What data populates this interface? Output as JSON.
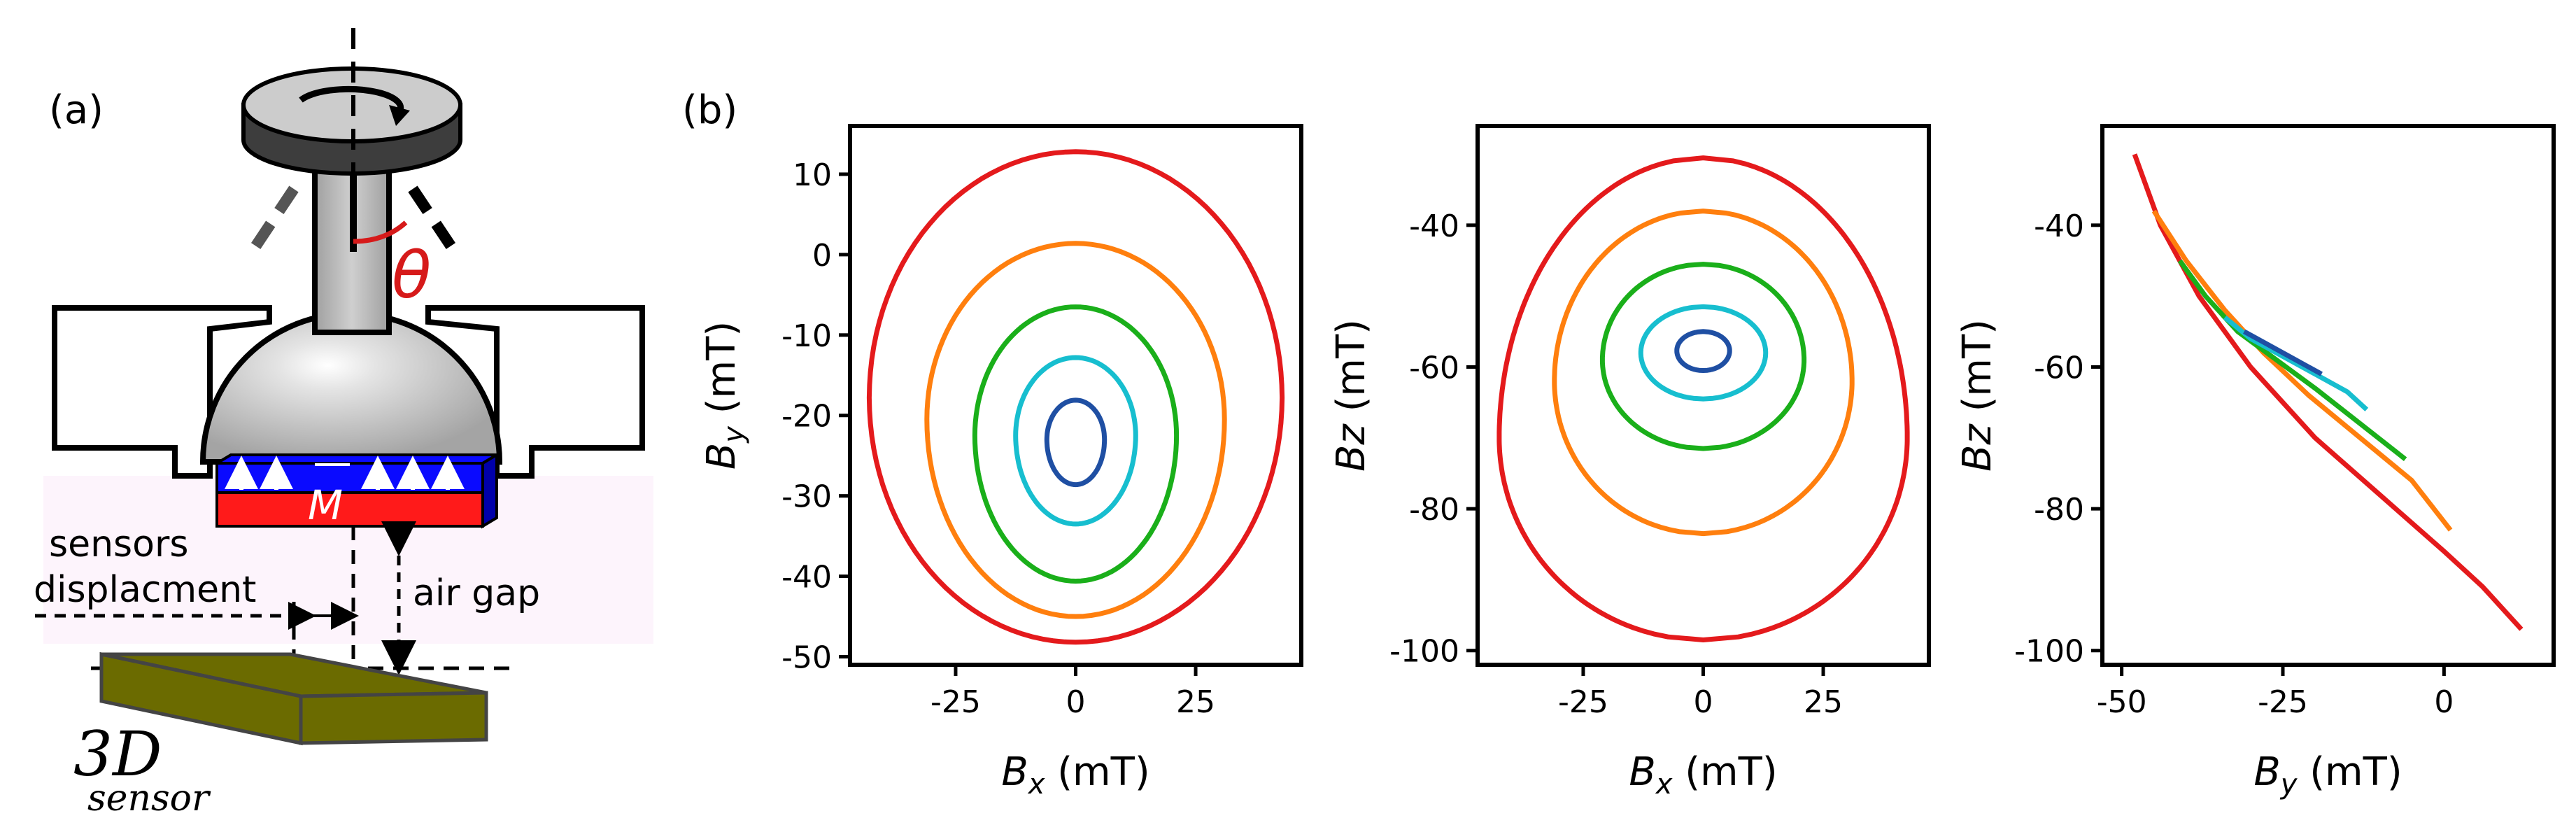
{
  "panels": {
    "a": "(a)",
    "b": "(b)"
  },
  "diagram": {
    "theta_label": "θ",
    "magnetization_label": "M",
    "sensors_displacement_label_line1": "sensors",
    "sensors_displacement_label_line2": "displacment",
    "air_gap_label": "air gap",
    "sensor_label_line1": "3D",
    "sensor_label_line2": "sensor",
    "colors": {
      "magnet_top": "#0a0aff",
      "magnet_bottom": "#ff1a1a",
      "theta_arc": "#d61a1a",
      "sensor": "#6b6b00",
      "sensor_zone": "#fdf4fc",
      "joint": "#b9b9b9",
      "knob_top": "#cccccc",
      "knob_side": "#3d3d3d"
    }
  },
  "chart_data": [
    {
      "type": "line",
      "xlabel_base": "B",
      "xlabel_sub": "x",
      "xlabel_unit": " (mT)",
      "ylabel_base": "B",
      "ylabel_sub": "y",
      "ylabel_unit": " (mT)",
      "xlim": [
        -47,
        47
      ],
      "ylim": [
        -51,
        16
      ],
      "xticks": [
        -25,
        0,
        25
      ],
      "yticks": [
        10,
        0,
        -10,
        -20,
        -30,
        -40,
        -50
      ],
      "series": [
        {
          "color": "#e41a1c",
          "shape": "ellipse",
          "cx": 0,
          "cy": -17.8,
          "rx": 43,
          "ry_top": 30.6,
          "ry_bottom": 30.4
        },
        {
          "color": "#ff7f0e",
          "shape": "ellipse",
          "cx": 0,
          "cy": -20.5,
          "rx": 31,
          "ry_top": 21.9,
          "ry_bottom": 24.5
        },
        {
          "color": "#1aaf1a",
          "shape": "ellipse",
          "cx": 0,
          "cy": -22.5,
          "rx": 21,
          "ry_top": 16.0,
          "ry_bottom": 18.1
        },
        {
          "color": "#17becf",
          "shape": "ellipse",
          "cx": 0,
          "cy": -22.5,
          "rx": 12.5,
          "ry_top": 9.7,
          "ry_bottom": 11.0
        },
        {
          "color": "#1f4fa3",
          "shape": "ellipse",
          "cx": 0,
          "cy": -23.0,
          "rx": 6.0,
          "ry_top": 4.9,
          "ry_bottom": 5.6
        }
      ]
    },
    {
      "type": "line",
      "xlabel_base": "B",
      "xlabel_sub": "x",
      "xlabel_unit": " (mT)",
      "ylabel_base": "Bz",
      "ylabel_sub": "",
      "ylabel_unit": " (mT)",
      "xlim": [
        -47,
        47
      ],
      "ylim": [
        -102,
        -26
      ],
      "xticks": [
        -25,
        0,
        25
      ],
      "yticks": [
        -40,
        -60,
        -80,
        -100
      ],
      "series": [
        {
          "color": "#e41a1c",
          "shape": "egg",
          "cx": 0,
          "ytop": -30.5,
          "ybottom": -98.5,
          "ywidest": -70,
          "rx_max": 42.5
        },
        {
          "color": "#ff7f0e",
          "shape": "egg",
          "cx": 0,
          "ytop": -38,
          "ybottom": -83.5,
          "ywidest": -62,
          "rx_max": 31
        },
        {
          "color": "#1aaf1a",
          "shape": "egg",
          "cx": 0,
          "ytop": -45.5,
          "ybottom": -71.5,
          "ywidest": -59,
          "rx_max": 21
        },
        {
          "color": "#17becf",
          "shape": "egg",
          "cx": 0,
          "ytop": -51.5,
          "ybottom": -64.5,
          "ywidest": -58,
          "rx_max": 13
        },
        {
          "color": "#1f4fa3",
          "shape": "egg",
          "cx": 0,
          "ytop": -55,
          "ybottom": -60.5,
          "ywidest": -57.7,
          "rx_max": 5.5
        }
      ]
    },
    {
      "type": "line",
      "xlabel_base": "B",
      "xlabel_sub": "y",
      "xlabel_unit": " (mT)",
      "ylabel_base": "Bz",
      "ylabel_sub": "",
      "ylabel_unit": " (mT)",
      "xlim": [
        -53,
        17
      ],
      "ylim": [
        -102,
        -26
      ],
      "xticks": [
        -50,
        -25,
        0
      ],
      "yticks": [
        -40,
        -60,
        -80,
        -100
      ],
      "series": [
        {
          "color": "#e41a1c",
          "x": [
            -48,
            -44,
            -38,
            -30,
            -20,
            -10,
            0,
            6,
            12
          ],
          "y": [
            -30,
            -40,
            -50,
            -60,
            -70,
            -78,
            -86,
            -91,
            -97
          ]
        },
        {
          "color": "#ff7f0e",
          "x": [
            -45,
            -40,
            -34,
            -28,
            -21,
            -13,
            -5,
            1
          ],
          "y": [
            -38,
            -45,
            -52,
            -58,
            -64,
            -70,
            -76,
            -83
          ]
        },
        {
          "color": "#1aaf1a",
          "x": [
            -41,
            -37,
            -32,
            -26,
            -20,
            -13,
            -6
          ],
          "y": [
            -45,
            -50,
            -55,
            -59,
            -63,
            -68,
            -73
          ]
        },
        {
          "color": "#17becf",
          "x": [
            -34,
            -30,
            -25,
            -20,
            -15,
            -12
          ],
          "y": [
            -53,
            -56,
            -58.5,
            -61,
            -63.5,
            -66
          ]
        },
        {
          "color": "#1f4fa3",
          "x": [
            -31,
            -27,
            -23,
            -19
          ],
          "y": [
            -55,
            -57,
            -59,
            -61
          ]
        }
      ]
    }
  ]
}
